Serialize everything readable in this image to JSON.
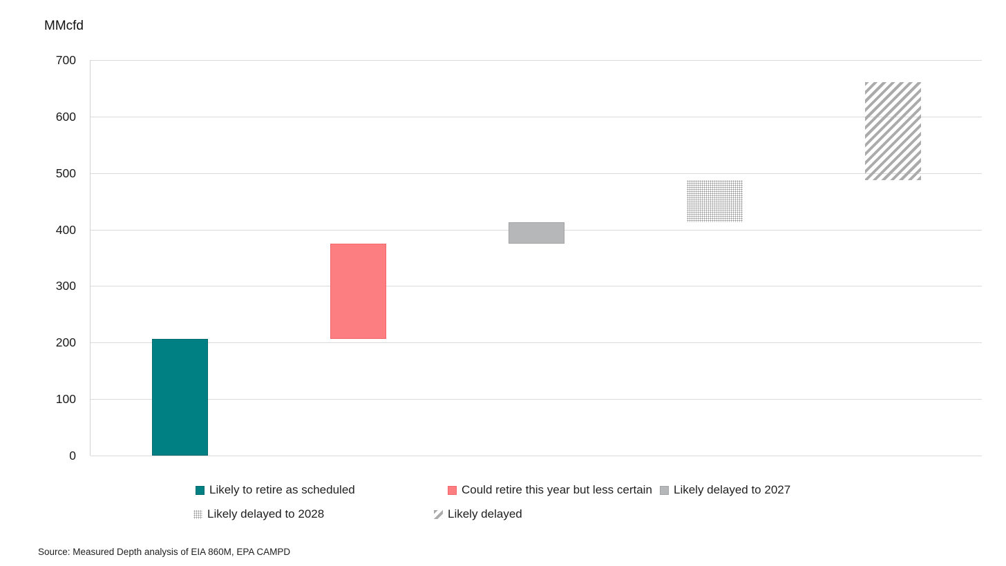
{
  "chart": {
    "unit_label": "MMcfd",
    "source": "Source: Measured Depth analysis of EIA 860M, EPA CAMPD"
  },
  "chart_data": {
    "type": "bar",
    "subtype": "waterfall",
    "title": "",
    "ylabel": "MMcfd",
    "ylim": [
      0,
      700
    ],
    "yticks": [
      0,
      100,
      200,
      300,
      400,
      500,
      600,
      700
    ],
    "grid": "horizontal",
    "legend_position": "bottom",
    "colors": {
      "gridline": "#dadada",
      "axis_line": "#d2d2d2",
      "text": "#1a1a1a"
    },
    "series": [
      {
        "name": "Likely to retire as scheduled",
        "start": 0,
        "end": 207,
        "value": 207,
        "pattern": "solid",
        "color": "#008083",
        "border": "#02696c"
      },
      {
        "name": "Could retire this year but less certain",
        "start": 207,
        "end": 375,
        "value": 168,
        "pattern": "solid",
        "color": "#fc7e81",
        "border": "#f2676c"
      },
      {
        "name": "Likely delayed to 2027",
        "start": 375,
        "end": 413,
        "value": 38,
        "pattern": "solid",
        "color": "#b6b7b9",
        "border": "#a2a3a5"
      },
      {
        "name": "Likely delayed to 2028",
        "start": 413,
        "end": 488,
        "value": 75,
        "pattern": "dotted",
        "color": "#8c8c8c",
        "border": ""
      },
      {
        "name": "Likely delayed",
        "start": 488,
        "end": 661,
        "value": 173,
        "pattern": "hatched",
        "color": "#ababab",
        "border": ""
      }
    ]
  }
}
